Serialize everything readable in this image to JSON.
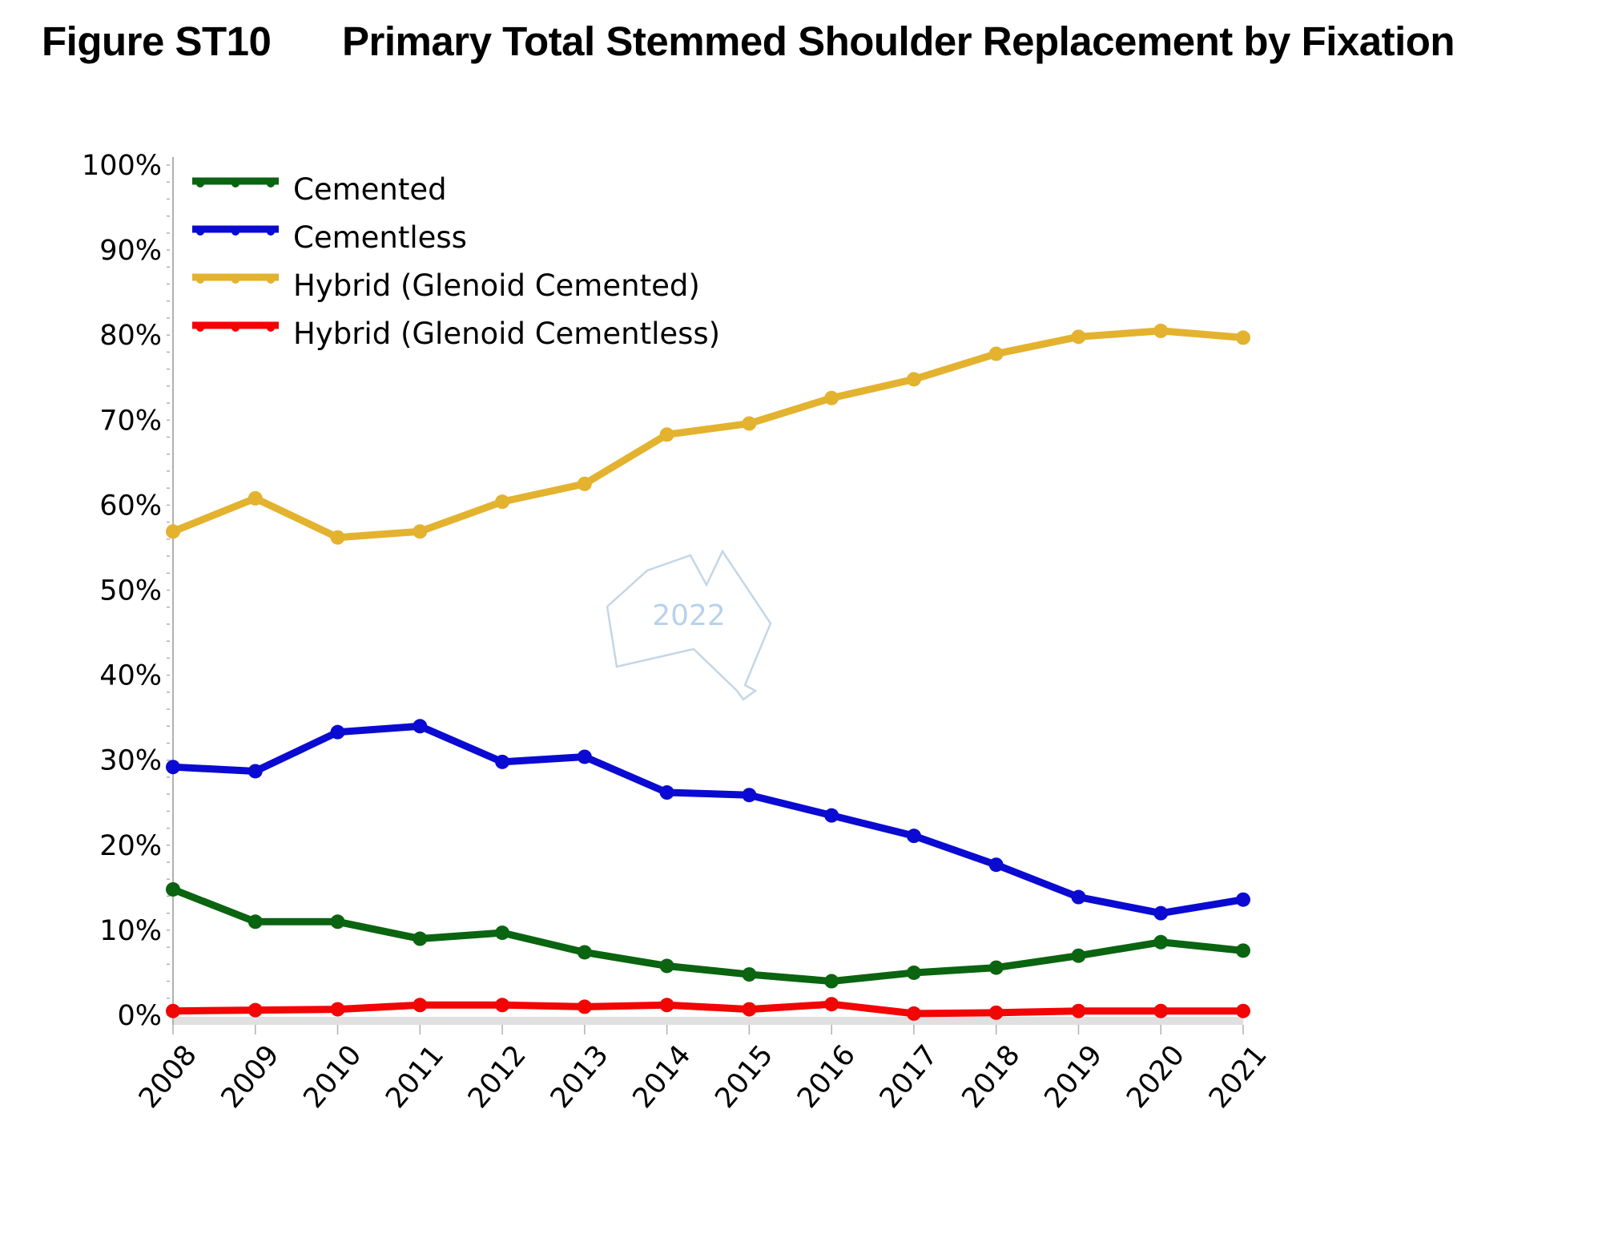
{
  "figure_label": "Figure ST10",
  "figure_title": "Primary Total Stemmed Shoulder Replacement by Fixation",
  "watermark": {
    "text": "2022",
    "shape": "australia-outline"
  },
  "chart_data": {
    "type": "line",
    "title": "Primary Total Stemmed Shoulder Replacement by Fixation",
    "xlabel": "",
    "ylabel": "",
    "ylim": [
      0,
      100
    ],
    "y_ticks": [
      "0%",
      "10%",
      "20%",
      "30%",
      "40%",
      "50%",
      "60%",
      "70%",
      "80%",
      "90%",
      "100%"
    ],
    "y_tick_values": [
      0,
      10,
      20,
      30,
      40,
      50,
      60,
      70,
      80,
      90,
      100
    ],
    "grid": false,
    "legend_position": "top-left",
    "x": [
      "2008",
      "2009",
      "2010",
      "2011",
      "2012",
      "2013",
      "2014",
      "2015",
      "2016",
      "2017",
      "2018",
      "2019",
      "2020",
      "2021"
    ],
    "series": [
      {
        "name": "Cemented",
        "color": "#0a6410",
        "values": [
          14.8,
          11.0,
          11.0,
          9.0,
          9.7,
          7.4,
          5.8,
          4.8,
          4.0,
          5.0,
          5.6,
          7.0,
          8.6,
          7.6
        ]
      },
      {
        "name": "Cementless",
        "color": "#0a0ad2",
        "values": [
          29.2,
          28.7,
          33.3,
          34.0,
          29.8,
          30.4,
          26.2,
          25.9,
          23.5,
          21.1,
          17.7,
          13.9,
          12.0,
          13.6
        ]
      },
      {
        "name": "Hybrid (Glenoid Cemented)",
        "color": "#e3b22e",
        "values": [
          56.9,
          60.8,
          56.2,
          56.9,
          60.4,
          62.5,
          68.3,
          69.6,
          72.6,
          74.8,
          77.8,
          79.8,
          80.5,
          79.7
        ]
      },
      {
        "name": "Hybrid (Glenoid Cementless)",
        "color": "#f20505",
        "values": [
          0.5,
          0.6,
          0.7,
          1.2,
          1.2,
          1.0,
          1.2,
          0.7,
          1.3,
          0.2,
          0.3,
          0.5,
          0.5,
          0.5
        ]
      }
    ]
  }
}
